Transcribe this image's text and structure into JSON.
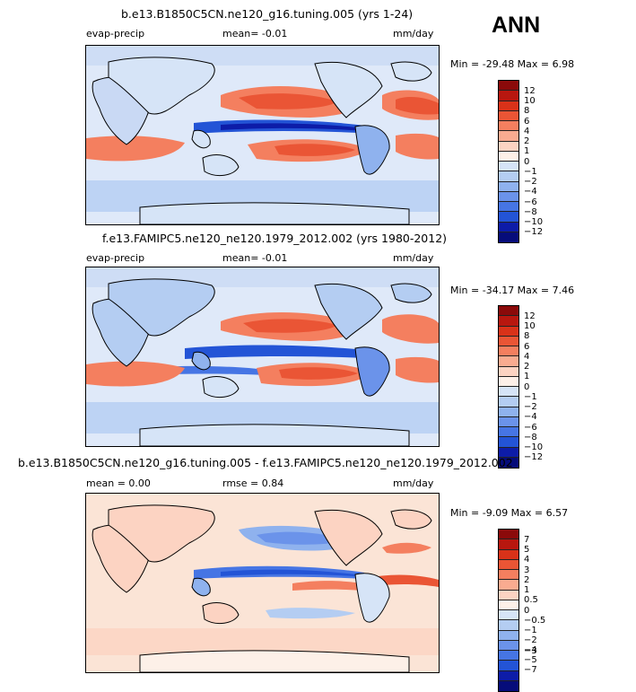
{
  "season": "ANN",
  "panels": [
    {
      "title": "b.e13.B1850C5CN.ne120_g16.tuning.005 (yrs 1-24)",
      "left_label": "evap-precip",
      "center_label": "mean=   -0.01",
      "units": "mm/day",
      "minmax": "Min = -29.48 Max =    6.98",
      "levels": [
        "12",
        "10",
        "8",
        "6",
        "4",
        "2",
        "1",
        "0",
        "−1",
        "−2",
        "−4",
        "−6",
        "−8",
        "−10",
        "−12"
      ],
      "colors": [
        "#8b0a0a",
        "#b8170f",
        "#d93219",
        "#ea5535",
        "#f47f5f",
        "#f9ab90",
        "#fcd3c2",
        "#fdf0e8",
        "#d6e4f7",
        "#b4cdf2",
        "#8fb2ee",
        "#6b93ea",
        "#4675e4",
        "#2354d6",
        "#0d1ca8",
        "#060c7a"
      ]
    },
    {
      "title": "f.e13.FAMIPC5.ne120_ne120.1979_2012.002 (yrs 1980-2012)",
      "left_label": "evap-precip",
      "center_label": "mean=   -0.01",
      "units": "mm/day",
      "minmax": "Min = -34.17 Max =    7.46",
      "levels": [
        "12",
        "10",
        "8",
        "6",
        "4",
        "2",
        "1",
        "0",
        "−1",
        "−2",
        "−4",
        "−6",
        "−8",
        "−10",
        "−12"
      ],
      "colors": [
        "#8b0a0a",
        "#b8170f",
        "#d93219",
        "#ea5535",
        "#f47f5f",
        "#f9ab90",
        "#fcd3c2",
        "#fdf0e8",
        "#d6e4f7",
        "#b4cdf2",
        "#8fb2ee",
        "#6b93ea",
        "#4675e4",
        "#2354d6",
        "#0d1ca8",
        "#060c7a"
      ]
    },
    {
      "title": "b.e13.B1850C5CN.ne120_g16.tuning.005 - f.e13.FAMIPC5.ne120_ne120.1979_2012.002",
      "left_label": "mean =   0.00",
      "center_label": "rmse =    0.84",
      "units": "mm/day",
      "minmax": "Min =  -9.09 Max =    6.57",
      "levels": [
        "7",
        "5",
        "4",
        "3",
        "2",
        "1",
        "0.5",
        "0",
        "−0.5",
        "−1",
        "−2",
        "−3",
        "−4",
        "−5",
        "−7"
      ],
      "colors": [
        "#8b0a0a",
        "#b8170f",
        "#d93219",
        "#ea5535",
        "#f47f5f",
        "#f9ab90",
        "#fcd3c2",
        "#fdf0e8",
        "#d6e4f7",
        "#b4cdf2",
        "#8fb2ee",
        "#6b93ea",
        "#4675e4",
        "#2354d6",
        "#0d1ca8",
        "#060c7a"
      ]
    }
  ]
}
